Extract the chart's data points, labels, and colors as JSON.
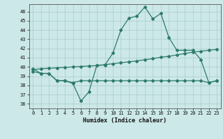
{
  "title": "",
  "xlabel": "Humidex (Indice chaleur)",
  "background_color": "#cce8e8",
  "grid_color": "#aacccc",
  "line_color": "#2d7a6e",
  "xlim": [
    -0.5,
    23.5
  ],
  "ylim": [
    35.5,
    46.8
  ],
  "yticks": [
    36,
    37,
    38,
    39,
    40,
    41,
    42,
    43,
    44,
    45,
    46
  ],
  "xticks": [
    0,
    1,
    2,
    3,
    4,
    5,
    6,
    7,
    8,
    9,
    10,
    11,
    12,
    13,
    14,
    15,
    16,
    17,
    18,
    19,
    20,
    21,
    22,
    23
  ],
  "series1_x": [
    0,
    1,
    2,
    3,
    4,
    5,
    6,
    7,
    8,
    9,
    10,
    11,
    12,
    13,
    14,
    15,
    16,
    17,
    18,
    19,
    20,
    21,
    22,
    23
  ],
  "series1_y": [
    39.8,
    39.3,
    39.3,
    38.5,
    38.5,
    38.2,
    36.3,
    37.3,
    40.2,
    40.2,
    41.5,
    44.0,
    45.3,
    45.5,
    46.5,
    45.2,
    45.8,
    43.2,
    41.8,
    41.8,
    41.8,
    40.8,
    38.3,
    38.5
  ],
  "series2_x": [
    0,
    1,
    2,
    3,
    4,
    5,
    6,
    7,
    8,
    9,
    10,
    11,
    12,
    13,
    14,
    15,
    16,
    17,
    18,
    19,
    20,
    21,
    22,
    23
  ],
  "series2_y": [
    39.5,
    39.3,
    39.3,
    38.5,
    38.5,
    38.3,
    38.5,
    38.5,
    38.5,
    38.5,
    38.5,
    38.5,
    38.5,
    38.5,
    38.5,
    38.5,
    38.5,
    38.5,
    38.5,
    38.5,
    38.5,
    38.5,
    38.3,
    38.5
  ],
  "series3_x": [
    0,
    1,
    2,
    3,
    4,
    5,
    6,
    7,
    8,
    9,
    10,
    11,
    12,
    13,
    14,
    15,
    16,
    17,
    18,
    19,
    20,
    21,
    22,
    23
  ],
  "series3_y": [
    39.7,
    39.8,
    39.85,
    39.9,
    39.95,
    40.0,
    40.05,
    40.1,
    40.15,
    40.25,
    40.35,
    40.45,
    40.55,
    40.65,
    40.78,
    40.9,
    41.05,
    41.15,
    41.3,
    41.45,
    41.6,
    41.7,
    41.8,
    41.9
  ]
}
